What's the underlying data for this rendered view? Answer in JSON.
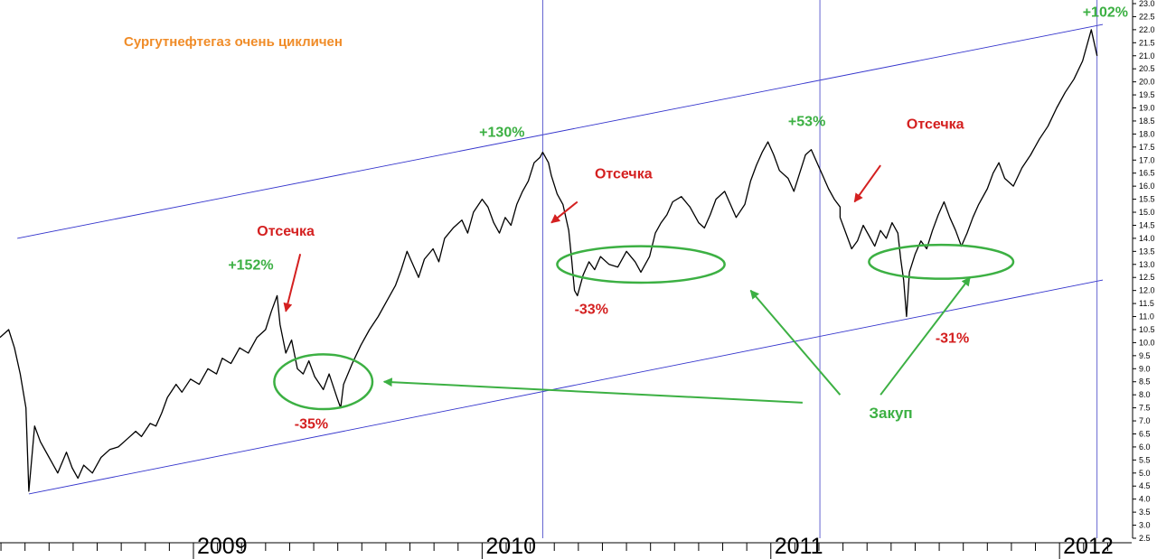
{
  "colors": {
    "price": "#000000",
    "channel": "#3333cc",
    "marker_line": "#5555cc",
    "green": "#3cb043",
    "red": "#d42020",
    "orange": "#f08c28",
    "axis": "#000000"
  },
  "chart_data": {
    "type": "line",
    "title": "Сургутнефтегаз очень цикличен",
    "xlim": [
      2008.33,
      2012.25
    ],
    "ylim": [
      2.5,
      23.0
    ],
    "y_axis_side": "right",
    "y_ticks": [
      "2.5",
      "3.0",
      "3.5",
      "4.0",
      "4.5",
      "5.0",
      "5.5",
      "6.0",
      "6.5",
      "7.0",
      "7.5",
      "8.0",
      "8.5",
      "9.0",
      "9.5",
      "10.0",
      "10.5",
      "11.0",
      "11.5",
      "12.0",
      "12.5",
      "13.0",
      "13.5",
      "14.0",
      "14.5",
      "15.0",
      "15.5",
      "16.0",
      "16.5",
      "17.0",
      "17.5",
      "18.0",
      "18.5",
      "19.0",
      "19.5",
      "20.0",
      "20.5",
      "21.0",
      "21.5",
      "22.0",
      "22.5",
      "23.0"
    ],
    "x_year_labels": [
      {
        "label": "2009",
        "x": 2009.0
      },
      {
        "label": "2010",
        "x": 2010.0
      },
      {
        "label": "2011",
        "x": 2011.0
      },
      {
        "label": "2012",
        "x": 2012.0
      }
    ],
    "series": [
      {
        "points": [
          [
            2008.33,
            10.2
          ],
          [
            2008.36,
            10.5
          ],
          [
            2008.38,
            9.8
          ],
          [
            2008.4,
            8.8
          ],
          [
            2008.42,
            7.5
          ],
          [
            2008.43,
            4.3
          ],
          [
            2008.45,
            6.8
          ],
          [
            2008.47,
            6.2
          ],
          [
            2008.5,
            5.6
          ],
          [
            2008.53,
            5.0
          ],
          [
            2008.56,
            5.8
          ],
          [
            2008.58,
            5.2
          ],
          [
            2008.6,
            4.8
          ],
          [
            2008.62,
            5.3
          ],
          [
            2008.65,
            5.0
          ],
          [
            2008.68,
            5.6
          ],
          [
            2008.71,
            5.9
          ],
          [
            2008.74,
            6.0
          ],
          [
            2008.77,
            6.3
          ],
          [
            2008.8,
            6.6
          ],
          [
            2008.82,
            6.4
          ],
          [
            2008.85,
            6.9
          ],
          [
            2008.87,
            6.8
          ],
          [
            2008.89,
            7.3
          ],
          [
            2008.91,
            7.9
          ],
          [
            2008.94,
            8.4
          ],
          [
            2008.96,
            8.1
          ],
          [
            2008.99,
            8.6
          ],
          [
            2009.02,
            8.4
          ],
          [
            2009.05,
            9.0
          ],
          [
            2009.08,
            8.8
          ],
          [
            2009.1,
            9.4
          ],
          [
            2009.13,
            9.2
          ],
          [
            2009.16,
            9.8
          ],
          [
            2009.19,
            9.6
          ],
          [
            2009.22,
            10.2
          ],
          [
            2009.25,
            10.5
          ],
          [
            2009.27,
            11.2
          ],
          [
            2009.29,
            11.8
          ],
          [
            2009.3,
            10.7
          ],
          [
            2009.32,
            9.6
          ],
          [
            2009.34,
            10.1
          ],
          [
            2009.36,
            9.0
          ],
          [
            2009.38,
            8.8
          ],
          [
            2009.4,
            9.3
          ],
          [
            2009.42,
            8.7
          ],
          [
            2009.45,
            8.2
          ],
          [
            2009.47,
            8.8
          ],
          [
            2009.5,
            7.8
          ],
          [
            2009.51,
            7.5
          ],
          [
            2009.52,
            8.4
          ],
          [
            2009.55,
            9.2
          ],
          [
            2009.58,
            9.9
          ],
          [
            2009.61,
            10.5
          ],
          [
            2009.64,
            11.0
          ],
          [
            2009.67,
            11.6
          ],
          [
            2009.7,
            12.2
          ],
          [
            2009.72,
            12.8
          ],
          [
            2009.74,
            13.5
          ],
          [
            2009.76,
            13.0
          ],
          [
            2009.78,
            12.5
          ],
          [
            2009.8,
            13.2
          ],
          [
            2009.83,
            13.6
          ],
          [
            2009.85,
            13.1
          ],
          [
            2009.87,
            14.0
          ],
          [
            2009.9,
            14.4
          ],
          [
            2009.93,
            14.7
          ],
          [
            2009.95,
            14.2
          ],
          [
            2009.97,
            15.0
          ],
          [
            2010.0,
            15.5
          ],
          [
            2010.02,
            15.2
          ],
          [
            2010.04,
            14.6
          ],
          [
            2010.06,
            14.2
          ],
          [
            2010.08,
            14.8
          ],
          [
            2010.1,
            14.5
          ],
          [
            2010.12,
            15.3
          ],
          [
            2010.14,
            15.8
          ],
          [
            2010.16,
            16.2
          ],
          [
            2010.18,
            16.9
          ],
          [
            2010.2,
            17.1
          ],
          [
            2010.21,
            17.3
          ],
          [
            2010.23,
            16.9
          ],
          [
            2010.24,
            16.4
          ],
          [
            2010.26,
            15.7
          ],
          [
            2010.28,
            15.3
          ],
          [
            2010.3,
            14.3
          ],
          [
            2010.31,
            13.2
          ],
          [
            2010.32,
            12.0
          ],
          [
            2010.33,
            11.8
          ],
          [
            2010.35,
            12.6
          ],
          [
            2010.37,
            13.1
          ],
          [
            2010.39,
            12.8
          ],
          [
            2010.41,
            13.3
          ],
          [
            2010.44,
            13.0
          ],
          [
            2010.47,
            12.9
          ],
          [
            2010.5,
            13.5
          ],
          [
            2010.53,
            13.1
          ],
          [
            2010.55,
            12.7
          ],
          [
            2010.58,
            13.3
          ],
          [
            2010.6,
            14.2
          ],
          [
            2010.62,
            14.6
          ],
          [
            2010.64,
            14.9
          ],
          [
            2010.66,
            15.4
          ],
          [
            2010.69,
            15.6
          ],
          [
            2010.72,
            15.2
          ],
          [
            2010.75,
            14.6
          ],
          [
            2010.77,
            14.4
          ],
          [
            2010.79,
            14.9
          ],
          [
            2010.81,
            15.5
          ],
          [
            2010.84,
            15.8
          ],
          [
            2010.86,
            15.3
          ],
          [
            2010.88,
            14.8
          ],
          [
            2010.91,
            15.3
          ],
          [
            2010.93,
            16.2
          ],
          [
            2010.95,
            16.8
          ],
          [
            2010.97,
            17.3
          ],
          [
            2010.99,
            17.7
          ],
          [
            2011.01,
            17.2
          ],
          [
            2011.03,
            16.6
          ],
          [
            2011.06,
            16.3
          ],
          [
            2011.08,
            15.8
          ],
          [
            2011.1,
            16.5
          ],
          [
            2011.12,
            17.2
          ],
          [
            2011.14,
            17.4
          ],
          [
            2011.16,
            16.9
          ],
          [
            2011.18,
            16.4
          ],
          [
            2011.2,
            15.9
          ],
          [
            2011.22,
            15.5
          ],
          [
            2011.24,
            15.2
          ],
          [
            2011.24,
            14.8
          ],
          [
            2011.26,
            14.2
          ],
          [
            2011.28,
            13.6
          ],
          [
            2011.3,
            13.9
          ],
          [
            2011.32,
            14.5
          ],
          [
            2011.34,
            14.1
          ],
          [
            2011.36,
            13.7
          ],
          [
            2011.38,
            14.3
          ],
          [
            2011.4,
            14.0
          ],
          [
            2011.42,
            14.6
          ],
          [
            2011.44,
            14.2
          ],
          [
            2011.45,
            13.2
          ],
          [
            2011.46,
            12.4
          ],
          [
            2011.47,
            11.0
          ],
          [
            2011.48,
            12.7
          ],
          [
            2011.5,
            13.4
          ],
          [
            2011.52,
            13.9
          ],
          [
            2011.54,
            13.6
          ],
          [
            2011.56,
            14.3
          ],
          [
            2011.58,
            14.9
          ],
          [
            2011.6,
            15.4
          ],
          [
            2011.62,
            14.8
          ],
          [
            2011.64,
            14.3
          ],
          [
            2011.66,
            13.7
          ],
          [
            2011.68,
            14.2
          ],
          [
            2011.7,
            14.8
          ],
          [
            2011.72,
            15.3
          ],
          [
            2011.75,
            15.9
          ],
          [
            2011.77,
            16.5
          ],
          [
            2011.79,
            16.9
          ],
          [
            2011.81,
            16.3
          ],
          [
            2011.84,
            16.0
          ],
          [
            2011.87,
            16.7
          ],
          [
            2011.9,
            17.2
          ],
          [
            2011.93,
            17.8
          ],
          [
            2011.96,
            18.3
          ],
          [
            2011.99,
            19.0
          ],
          [
            2012.02,
            19.6
          ],
          [
            2012.05,
            20.1
          ],
          [
            2012.08,
            20.8
          ],
          [
            2012.1,
            21.6
          ],
          [
            2012.11,
            22.0
          ],
          [
            2012.12,
            21.5
          ],
          [
            2012.13,
            21.0
          ]
        ]
      }
    ]
  },
  "channel_lines": [
    {
      "x1": 2008.39,
      "y1": 14.0,
      "x2": 2012.15,
      "y2": 22.2
    },
    {
      "x1": 2008.43,
      "y1": 4.2,
      "x2": 2012.15,
      "y2": 12.4
    }
  ],
  "marker_lines": [
    2010.21,
    2011.17,
    2012.13
  ],
  "annotations": {
    "gains": [
      {
        "text": "+152%",
        "x": 2009.12,
        "y": 12.8
      },
      {
        "text": "+130%",
        "x": 2009.99,
        "y": 17.9
      },
      {
        "text": "+53%",
        "x": 2011.06,
        "y": 18.3
      },
      {
        "text": "+102%",
        "x": 2012.08,
        "y": 22.5
      }
    ],
    "drops": [
      {
        "text": "-35%",
        "x": 2009.35,
        "y": 6.7
      },
      {
        "text": "-33%",
        "x": 2010.32,
        "y": 11.1
      },
      {
        "text": "-31%",
        "x": 2011.57,
        "y": 10.0
      }
    ],
    "otsechka": [
      {
        "text": "Отсечка",
        "x": 2009.22,
        "y": 14.1
      },
      {
        "text": "Отсечка",
        "x": 2010.39,
        "y": 16.3
      },
      {
        "text": "Отсечка",
        "x": 2011.47,
        "y": 18.2
      }
    ],
    "otsechka_arrows": [
      {
        "x1": 2009.37,
        "y1": 13.4,
        "x2": 2009.32,
        "y2": 11.2
      },
      {
        "x1": 2010.33,
        "y1": 15.4,
        "x2": 2010.24,
        "y2": 14.6
      },
      {
        "x1": 2011.38,
        "y1": 16.8,
        "x2": 2011.29,
        "y2": 15.4
      }
    ],
    "zakup": {
      "text": "Закуп",
      "x": 2011.34,
      "y": 7.1
    },
    "zakup_arrows": [
      {
        "x1": 2011.11,
        "y1": 7.7,
        "x2": 2009.66,
        "y2": 8.5
      },
      {
        "x1": 2011.24,
        "y1": 8.0,
        "x2": 2010.93,
        "y2": 12.0
      },
      {
        "x1": 2011.38,
        "y1": 8.0,
        "x2": 2011.69,
        "y2": 12.5
      }
    ],
    "ellipses": [
      {
        "cx": 2009.45,
        "cy": 8.5,
        "rx": 0.17,
        "ry": 1.05
      },
      {
        "cx": 2010.55,
        "cy": 13.0,
        "rx": 0.29,
        "ry": 0.7
      },
      {
        "cx": 2011.59,
        "cy": 13.1,
        "rx": 0.25,
        "ry": 0.65
      }
    ]
  }
}
